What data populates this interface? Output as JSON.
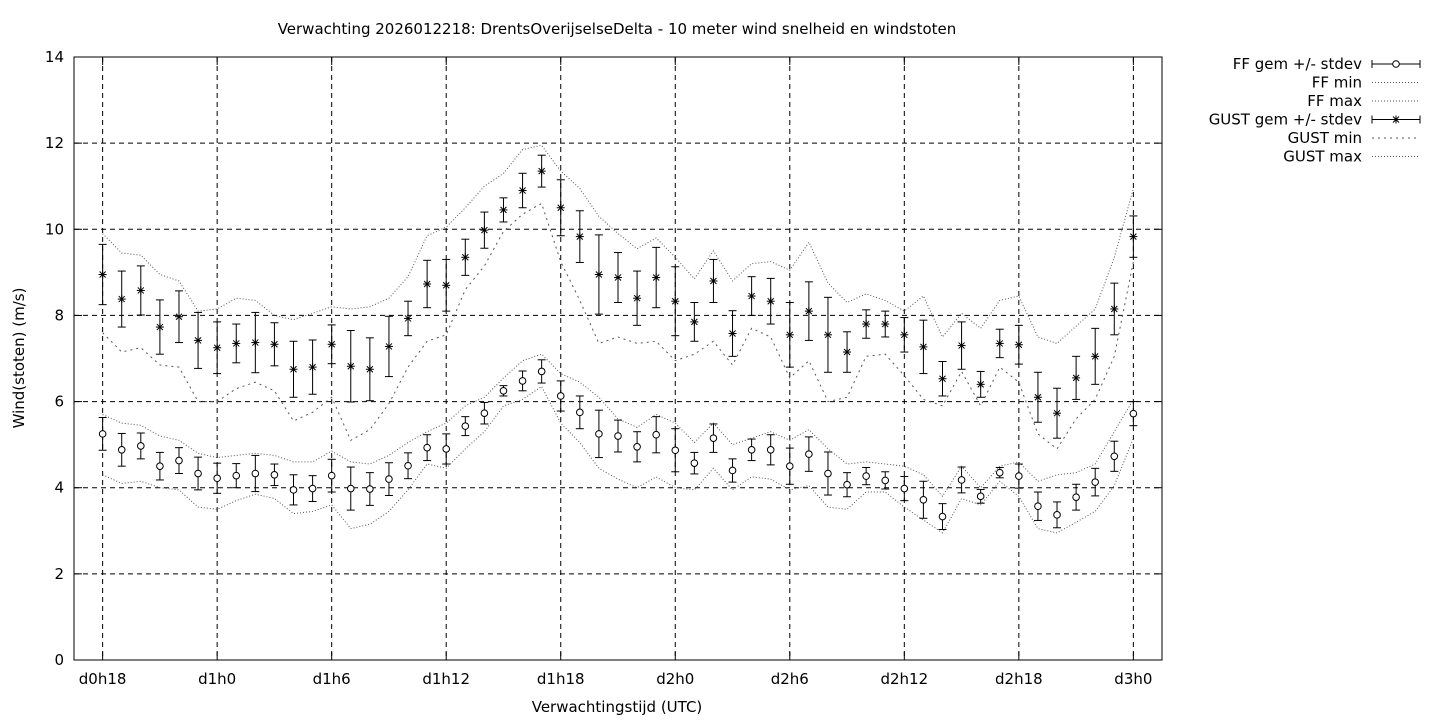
{
  "chart_data": {
    "type": "line",
    "title": "Verwachting 2026012218: DrentsOverijselseDelta - 10 meter wind snelheid en windstoten",
    "xlabel": "Verwachtingstijd (UTC)",
    "ylabel": "Wind(stoten) (m/s)",
    "ylim": [
      0,
      14
    ],
    "yticks": [
      0,
      2,
      4,
      6,
      8,
      10,
      12,
      14
    ],
    "xlim": [
      -1.5,
      55.5
    ],
    "xticks": [
      {
        "h": 0,
        "label": "d0h18"
      },
      {
        "h": 6,
        "label": "d1h0"
      },
      {
        "h": 12,
        "label": "d1h6"
      },
      {
        "h": 18,
        "label": "d1h12"
      },
      {
        "h": 24,
        "label": "d1h18"
      },
      {
        "h": 30,
        "label": "d2h0"
      },
      {
        "h": 36,
        "label": "d2h6"
      },
      {
        "h": 42,
        "label": "d2h12"
      },
      {
        "h": 48,
        "label": "d2h18"
      },
      {
        "h": 54,
        "label": "d3h0"
      }
    ],
    "grid": true,
    "legend_position": "outside-top-right",
    "x_hours_after_d0h18": [
      0,
      1,
      2,
      3,
      4,
      5,
      6,
      7,
      8,
      9,
      10,
      11,
      12,
      13,
      14,
      15,
      16,
      17,
      18,
      19,
      20,
      21,
      22,
      23,
      24,
      25,
      26,
      27,
      28,
      29,
      30,
      31,
      32,
      33,
      34,
      35,
      36,
      37,
      38,
      39,
      40,
      41,
      42,
      43,
      44,
      45,
      46,
      47,
      48,
      49,
      50,
      51,
      52,
      53,
      54
    ],
    "series": [
      {
        "name": "FF gem +/- stdev",
        "style": "errorbar-circle",
        "values": [
          5.25,
          4.88,
          4.97,
          4.5,
          4.63,
          4.33,
          4.22,
          4.28,
          4.33,
          4.3,
          3.95,
          3.98,
          4.28,
          3.98,
          3.97,
          4.2,
          4.51,
          4.93,
          4.9,
          5.43,
          5.73,
          6.25,
          6.48,
          6.7,
          6.13,
          5.75,
          5.25,
          5.2,
          4.95,
          5.23,
          4.87,
          4.57,
          5.15,
          4.4,
          4.88,
          4.88,
          4.5,
          4.78,
          4.33,
          4.07,
          4.27,
          4.17,
          3.98,
          3.72,
          3.33,
          4.18,
          3.8,
          4.35,
          4.27,
          3.57,
          3.37,
          3.78,
          4.13,
          4.73,
          5.72
        ],
        "stdev": [
          0.38,
          0.38,
          0.3,
          0.32,
          0.3,
          0.38,
          0.35,
          0.28,
          0.42,
          0.25,
          0.35,
          0.3,
          0.38,
          0.5,
          0.38,
          0.38,
          0.3,
          0.3,
          0.35,
          0.22,
          0.25,
          0.12,
          0.23,
          0.27,
          0.35,
          0.38,
          0.55,
          0.37,
          0.35,
          0.42,
          0.5,
          0.25,
          0.33,
          0.27,
          0.25,
          0.35,
          0.42,
          0.4,
          0.5,
          0.28,
          0.2,
          0.2,
          0.28,
          0.43,
          0.3,
          0.3,
          0.16,
          0.12,
          0.28,
          0.33,
          0.3,
          0.3,
          0.32,
          0.35,
          0.28
        ]
      },
      {
        "name": "FF min",
        "style": "dotted",
        "values": [
          4.3,
          4.1,
          4.15,
          4.0,
          3.95,
          3.55,
          3.5,
          3.7,
          3.85,
          3.75,
          3.4,
          3.45,
          3.6,
          3.05,
          3.15,
          3.45,
          3.95,
          4.55,
          4.45,
          4.9,
          5.3,
          5.9,
          6.05,
          6.35,
          5.5,
          5.05,
          4.45,
          4.2,
          4.0,
          4.25,
          4.0,
          3.95,
          4.45,
          3.95,
          4.25,
          4.2,
          3.95,
          4.05,
          3.55,
          3.5,
          3.9,
          3.9,
          3.55,
          3.25,
          2.95,
          3.75,
          3.6,
          4.15,
          3.8,
          3.05,
          2.95,
          3.2,
          3.45,
          4.05,
          5.15
        ]
      },
      {
        "name": "FF max",
        "style": "dotted",
        "values": [
          5.7,
          5.5,
          5.45,
          5.2,
          5.1,
          4.8,
          4.7,
          4.75,
          4.8,
          4.75,
          4.6,
          4.6,
          4.85,
          4.6,
          4.55,
          4.75,
          5.05,
          5.3,
          5.5,
          5.9,
          6.1,
          6.55,
          6.95,
          7.1,
          6.65,
          6.45,
          6.1,
          5.6,
          5.4,
          5.7,
          5.5,
          5.05,
          5.5,
          5.0,
          5.15,
          5.3,
          5.1,
          5.35,
          4.9,
          4.55,
          4.6,
          4.55,
          4.5,
          4.3,
          3.8,
          4.5,
          4.0,
          4.5,
          4.6,
          4.15,
          4.3,
          4.35,
          4.55,
          5.3,
          6.05
        ]
      },
      {
        "name": "GUST gem +/- stdev",
        "style": "errorbar-star",
        "values": [
          8.95,
          8.38,
          8.58,
          7.73,
          7.97,
          7.42,
          7.25,
          7.35,
          7.37,
          7.33,
          6.75,
          6.8,
          7.33,
          6.82,
          6.75,
          7.28,
          7.93,
          8.73,
          8.7,
          9.35,
          9.98,
          10.45,
          10.9,
          11.35,
          10.5,
          9.83,
          8.95,
          8.88,
          8.4,
          8.88,
          8.33,
          7.85,
          8.8,
          7.58,
          8.45,
          8.33,
          7.55,
          8.1,
          7.55,
          7.15,
          7.8,
          7.8,
          7.55,
          7.27,
          6.53,
          7.3,
          6.4,
          7.35,
          7.32,
          6.1,
          5.73,
          6.55,
          7.05,
          8.15,
          9.83
        ],
        "stdev": [
          0.7,
          0.65,
          0.57,
          0.63,
          0.6,
          0.65,
          0.6,
          0.45,
          0.7,
          0.5,
          0.65,
          0.63,
          0.45,
          0.83,
          0.73,
          0.7,
          0.4,
          0.55,
          0.6,
          0.42,
          0.42,
          0.28,
          0.4,
          0.37,
          0.65,
          0.6,
          0.92,
          0.58,
          0.63,
          0.7,
          0.8,
          0.45,
          0.5,
          0.53,
          0.45,
          0.53,
          0.75,
          0.68,
          0.87,
          0.47,
          0.33,
          0.3,
          0.4,
          0.62,
          0.4,
          0.55,
          0.3,
          0.33,
          0.45,
          0.58,
          0.58,
          0.5,
          0.65,
          0.6,
          0.48
        ]
      },
      {
        "name": "GUST min",
        "style": "densely-dotted",
        "values": [
          7.6,
          7.15,
          7.25,
          6.85,
          6.8,
          6.0,
          6.0,
          6.3,
          6.45,
          6.25,
          5.55,
          5.75,
          6.1,
          5.1,
          5.35,
          5.95,
          6.8,
          7.4,
          7.55,
          8.6,
          9.15,
          9.95,
          10.35,
          10.6,
          9.25,
          8.35,
          7.35,
          7.5,
          7.35,
          7.4,
          6.95,
          7.1,
          7.4,
          6.85,
          7.7,
          7.5,
          6.55,
          6.95,
          6.0,
          6.1,
          7.05,
          7.1,
          6.6,
          6.05,
          5.9,
          6.7,
          5.9,
          6.8,
          6.45,
          5.25,
          4.9,
          5.6,
          6.05,
          7.05,
          9.25
        ]
      },
      {
        "name": "GUST max",
        "style": "dotted",
        "values": [
          9.9,
          9.45,
          9.4,
          8.95,
          8.8,
          8.1,
          8.15,
          8.4,
          8.35,
          8.0,
          7.9,
          8.05,
          8.2,
          8.15,
          8.2,
          8.4,
          8.9,
          9.85,
          10.05,
          10.5,
          11.0,
          11.3,
          11.85,
          11.95,
          11.35,
          10.95,
          10.3,
          9.9,
          9.55,
          9.8,
          9.35,
          8.85,
          9.5,
          8.8,
          9.2,
          9.25,
          9.05,
          9.7,
          8.75,
          8.3,
          8.5,
          8.35,
          8.1,
          8.45,
          7.5,
          8.05,
          7.7,
          8.35,
          8.45,
          7.5,
          7.35,
          7.75,
          8.15,
          9.35,
          10.95
        ]
      }
    ]
  }
}
